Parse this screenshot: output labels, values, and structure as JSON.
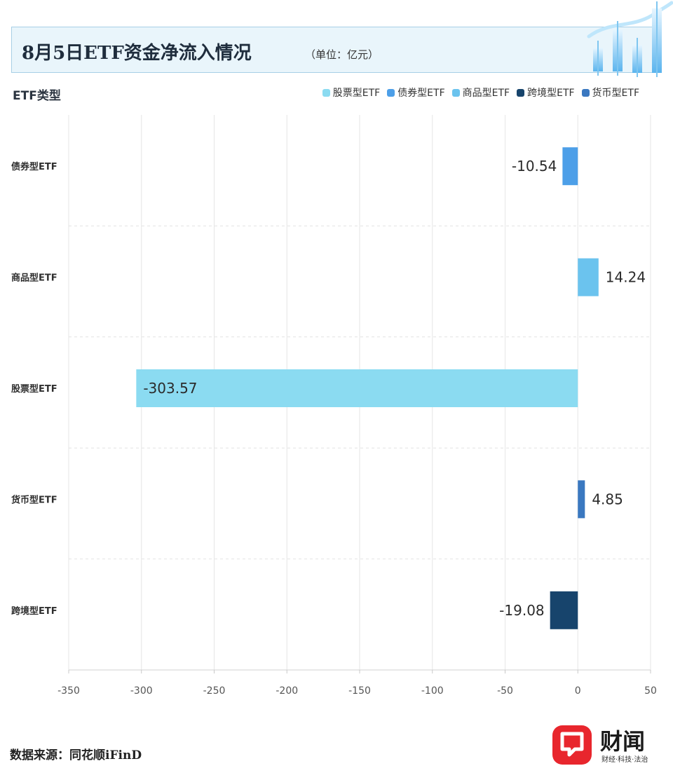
{
  "header": {
    "title": "8月5日ETF资金净流入情况",
    "unit": "（单位：亿元）"
  },
  "chart_data": {
    "type": "bar",
    "orientation": "horizontal",
    "ylabel": "ETF类型",
    "categories": [
      "债券型ETF",
      "商品型ETF",
      "股票型ETF",
      "货币型ETF",
      "跨境型ETF"
    ],
    "values": [
      -10.54,
      14.24,
      -303.57,
      4.85,
      -19.08
    ],
    "value_labels": [
      "-10.54",
      "14.24",
      "-303.57",
      "4.85",
      "-19.08"
    ],
    "bar_colors": [
      "#4d9fe8",
      "#6bc3ee",
      "#8bdbf1",
      "#3a78c0",
      "#17446c"
    ],
    "xlim": [
      -350,
      50
    ],
    "xticks": [
      -350,
      -300,
      -250,
      -200,
      -150,
      -100,
      -50,
      0,
      50
    ],
    "xtick_labels": [
      "-350",
      "-300",
      "-250",
      "-200",
      "-150",
      "-100",
      "-50",
      "0",
      "50"
    ],
    "grid": true,
    "legend_position": "top-right",
    "legend": [
      {
        "name": "股票型ETF",
        "color": "#8bdbf1"
      },
      {
        "name": "债券型ETF",
        "color": "#4d9fe8"
      },
      {
        "name": "商品型ETF",
        "color": "#6bc3ee"
      },
      {
        "name": "跨境型ETF",
        "color": "#17446c"
      },
      {
        "name": "货币型ETF",
        "color": "#3a78c0"
      }
    ]
  },
  "footer": {
    "source": "数据来源：同花顺iFinD",
    "logo_name": "财闻",
    "logo_tagline": "财经·科技·法治",
    "logo_color": "#e8262d"
  }
}
